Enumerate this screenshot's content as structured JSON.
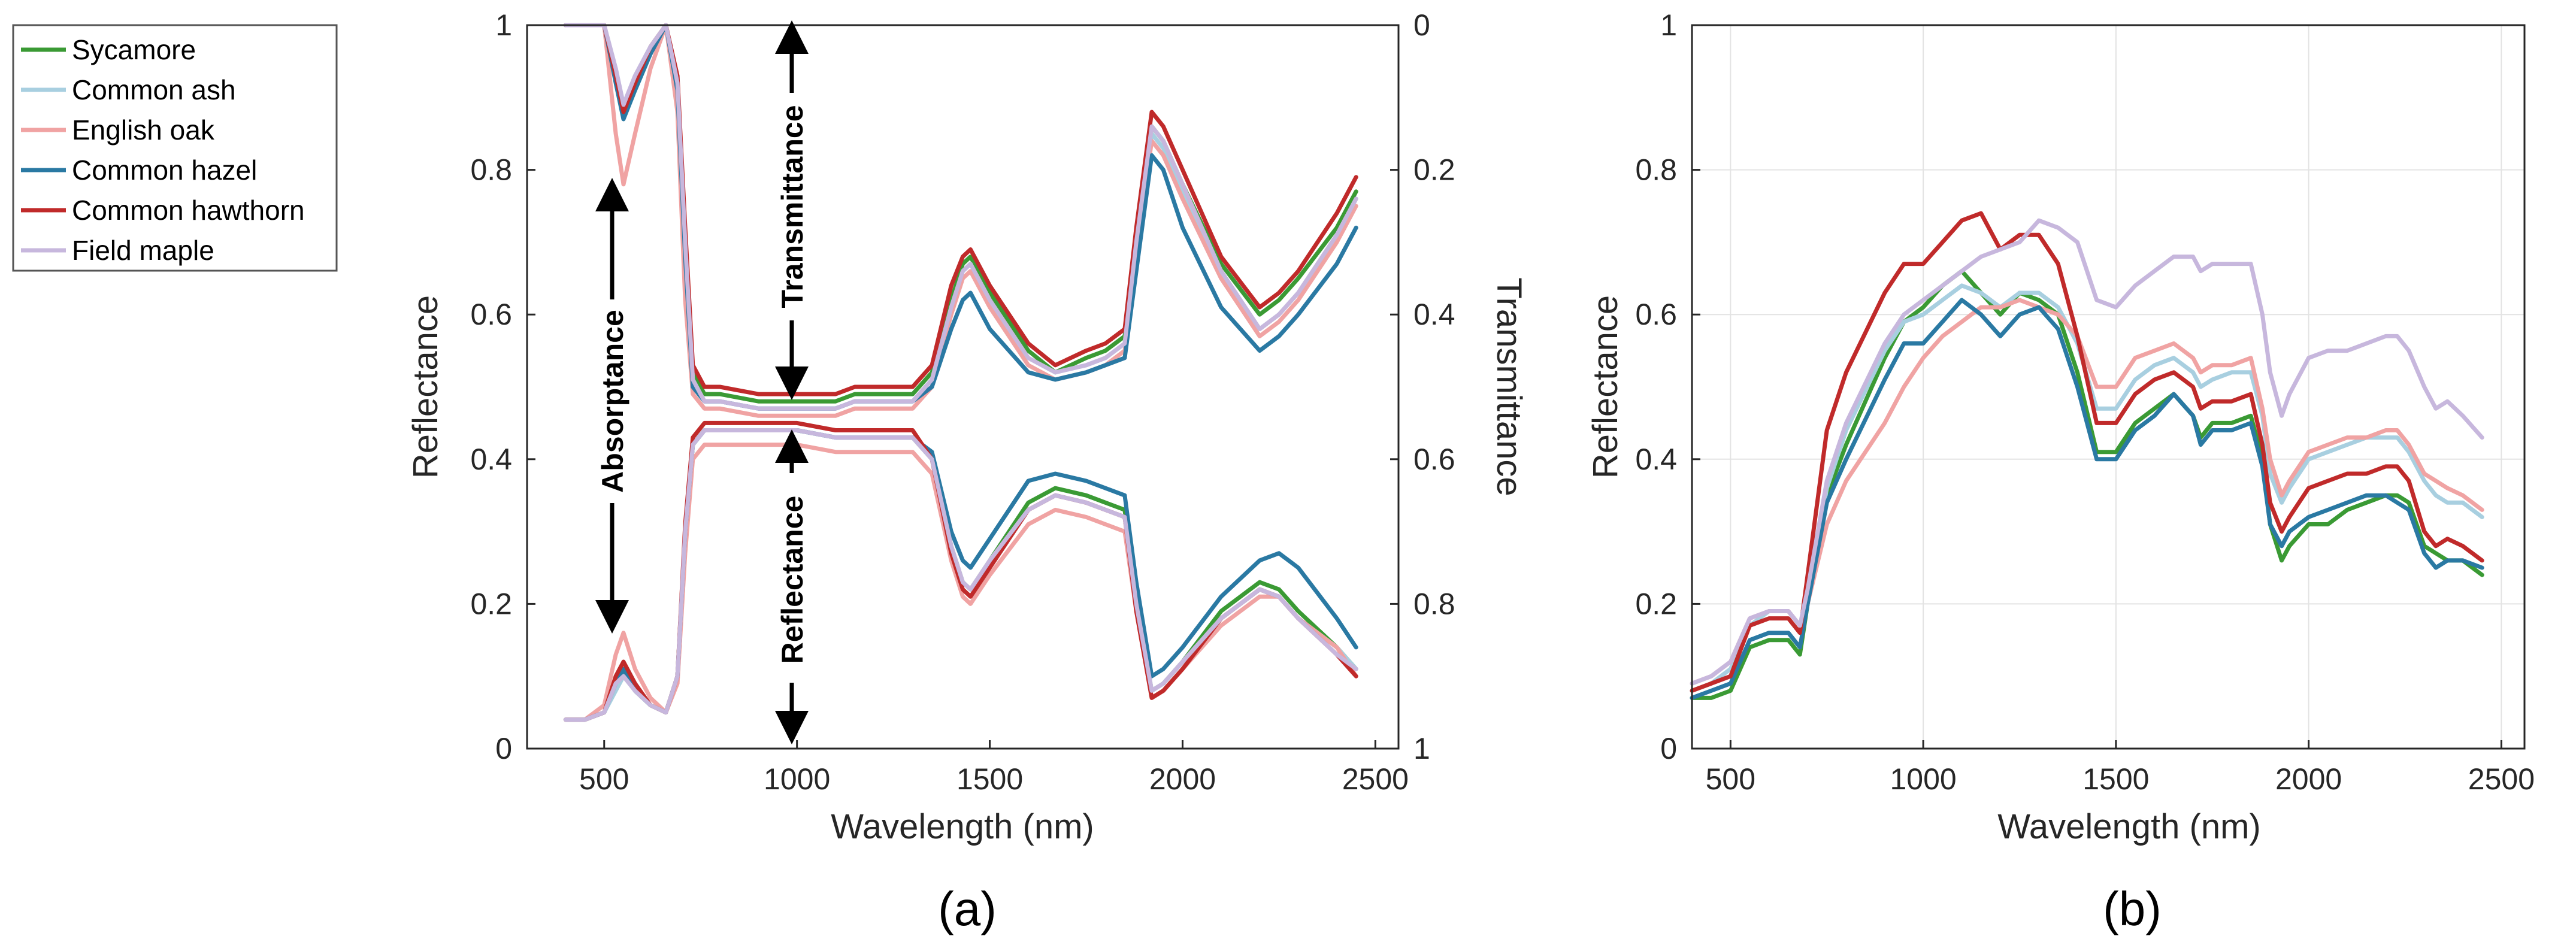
{
  "legend": {
    "entries": [
      {
        "label": "Sycamore",
        "color": "#3a9a34"
      },
      {
        "label": "Common ash",
        "color": "#a8cfe0"
      },
      {
        "label": "English oak",
        "color": "#f0a3a3"
      },
      {
        "label": "Common hazel",
        "color": "#2a79a3"
      },
      {
        "label": "Common hawthorn",
        "color": "#c02a2a"
      },
      {
        "label": "Field maple",
        "color": "#c7b7dd"
      }
    ]
  },
  "chart_data": [
    {
      "type": "line",
      "panel_label": "(a)",
      "xlabel": "Wavelength (nm)",
      "ylabel": "Reflectance",
      "ylabel_right": "Transmittance",
      "xlim": [
        300,
        2560
      ],
      "ylim": [
        0,
        1
      ],
      "xticks": [
        "500",
        "1000",
        "1500",
        "2000",
        "2500"
      ],
      "yticks": [
        "0",
        "0.2",
        "0.4",
        "0.6",
        "0.8",
        "1"
      ],
      "yticks_right": [
        "1",
        "0.8",
        "0.6",
        "0.4",
        "0.2",
        "0"
      ],
      "grid": false,
      "annotations": [
        "Absorptance",
        "Transmittance",
        "Reflectance"
      ],
      "x": [
        400,
        450,
        500,
        530,
        550,
        580,
        620,
        660,
        690,
        710,
        730,
        760,
        800,
        900,
        1000,
        1100,
        1150,
        1200,
        1300,
        1350,
        1400,
        1430,
        1450,
        1500,
        1600,
        1670,
        1750,
        1800,
        1850,
        1880,
        1920,
        1950,
        2000,
        2100,
        2200,
        2250,
        2300,
        2400,
        2450
      ],
      "series": [
        {
          "name": "Sycamore",
          "kind": "reflectance",
          "values": [
            0.04,
            0.04,
            0.05,
            0.09,
            0.11,
            0.08,
            0.06,
            0.05,
            0.1,
            0.3,
            0.42,
            0.44,
            0.44,
            0.44,
            0.44,
            0.43,
            0.43,
            0.43,
            0.43,
            0.4,
            0.28,
            0.23,
            0.22,
            0.26,
            0.34,
            0.36,
            0.35,
            0.34,
            0.33,
            0.2,
            0.08,
            0.09,
            0.12,
            0.19,
            0.23,
            0.22,
            0.19,
            0.14,
            0.11
          ]
        },
        {
          "name": "Common ash",
          "kind": "reflectance",
          "values": [
            0.04,
            0.04,
            0.05,
            0.08,
            0.1,
            0.08,
            0.06,
            0.05,
            0.1,
            0.3,
            0.42,
            0.44,
            0.44,
            0.44,
            0.44,
            0.43,
            0.43,
            0.43,
            0.43,
            0.4,
            0.28,
            0.23,
            0.22,
            0.26,
            0.33,
            0.35,
            0.34,
            0.33,
            0.32,
            0.2,
            0.08,
            0.09,
            0.12,
            0.18,
            0.22,
            0.21,
            0.18,
            0.14,
            0.11
          ]
        },
        {
          "name": "English oak",
          "kind": "reflectance",
          "values": [
            0.04,
            0.04,
            0.06,
            0.13,
            0.16,
            0.11,
            0.07,
            0.05,
            0.09,
            0.27,
            0.4,
            0.42,
            0.42,
            0.42,
            0.42,
            0.41,
            0.41,
            0.41,
            0.41,
            0.38,
            0.26,
            0.21,
            0.2,
            0.24,
            0.31,
            0.33,
            0.32,
            0.31,
            0.3,
            0.19,
            0.07,
            0.08,
            0.11,
            0.17,
            0.21,
            0.21,
            0.18,
            0.14,
            0.1
          ]
        },
        {
          "name": "Common hazel",
          "kind": "reflectance",
          "values": [
            0.04,
            0.04,
            0.05,
            0.09,
            0.11,
            0.08,
            0.06,
            0.05,
            0.1,
            0.3,
            0.42,
            0.44,
            0.44,
            0.44,
            0.44,
            0.43,
            0.43,
            0.43,
            0.43,
            0.41,
            0.3,
            0.26,
            0.25,
            0.29,
            0.37,
            0.38,
            0.37,
            0.36,
            0.35,
            0.23,
            0.1,
            0.11,
            0.14,
            0.21,
            0.26,
            0.27,
            0.25,
            0.18,
            0.14
          ]
        },
        {
          "name": "Common hawthorn",
          "kind": "reflectance",
          "values": [
            0.04,
            0.04,
            0.05,
            0.1,
            0.12,
            0.09,
            0.06,
            0.05,
            0.1,
            0.31,
            0.43,
            0.45,
            0.45,
            0.45,
            0.45,
            0.44,
            0.44,
            0.44,
            0.44,
            0.4,
            0.27,
            0.22,
            0.21,
            0.25,
            0.33,
            0.35,
            0.34,
            0.33,
            0.32,
            0.19,
            0.07,
            0.08,
            0.11,
            0.18,
            0.22,
            0.21,
            0.18,
            0.13,
            0.1
          ]
        },
        {
          "name": "Field maple",
          "kind": "reflectance",
          "values": [
            0.04,
            0.04,
            0.05,
            0.09,
            0.1,
            0.08,
            0.06,
            0.05,
            0.1,
            0.3,
            0.42,
            0.44,
            0.44,
            0.44,
            0.44,
            0.43,
            0.43,
            0.43,
            0.43,
            0.4,
            0.28,
            0.23,
            0.22,
            0.26,
            0.33,
            0.35,
            0.34,
            0.33,
            0.32,
            0.2,
            0.08,
            0.09,
            0.12,
            0.18,
            0.22,
            0.21,
            0.18,
            0.13,
            0.11
          ]
        },
        {
          "name": "Sycamore",
          "kind": "transmittance_reflectance_axis",
          "values": [
            1.0,
            1.0,
            1.0,
            0.93,
            0.88,
            0.92,
            0.97,
            1.0,
            0.92,
            0.7,
            0.52,
            0.49,
            0.49,
            0.48,
            0.48,
            0.48,
            0.49,
            0.49,
            0.49,
            0.52,
            0.62,
            0.67,
            0.68,
            0.63,
            0.55,
            0.52,
            0.54,
            0.55,
            0.57,
            0.7,
            0.86,
            0.84,
            0.78,
            0.67,
            0.6,
            0.62,
            0.65,
            0.72,
            0.77
          ]
        },
        {
          "name": "Common ash",
          "kind": "transmittance_reflectance_axis",
          "values": [
            1.0,
            1.0,
            1.0,
            0.94,
            0.89,
            0.93,
            0.97,
            1.0,
            0.92,
            0.7,
            0.51,
            0.48,
            0.48,
            0.47,
            0.47,
            0.47,
            0.48,
            0.48,
            0.48,
            0.51,
            0.61,
            0.66,
            0.67,
            0.62,
            0.54,
            0.52,
            0.53,
            0.54,
            0.56,
            0.7,
            0.85,
            0.83,
            0.77,
            0.66,
            0.58,
            0.6,
            0.63,
            0.71,
            0.76
          ]
        },
        {
          "name": "English oak",
          "kind": "transmittance_reflectance_axis",
          "values": [
            1.0,
            1.0,
            1.0,
            0.85,
            0.78,
            0.85,
            0.94,
            1.0,
            0.88,
            0.62,
            0.49,
            0.47,
            0.47,
            0.46,
            0.46,
            0.46,
            0.47,
            0.47,
            0.47,
            0.5,
            0.6,
            0.65,
            0.66,
            0.61,
            0.53,
            0.51,
            0.52,
            0.53,
            0.55,
            0.69,
            0.84,
            0.82,
            0.76,
            0.65,
            0.57,
            0.59,
            0.62,
            0.7,
            0.75
          ]
        },
        {
          "name": "Common hazel",
          "kind": "transmittance_reflectance_axis",
          "values": [
            1.0,
            1.0,
            1.0,
            0.92,
            0.87,
            0.91,
            0.96,
            1.0,
            0.91,
            0.68,
            0.5,
            0.48,
            0.48,
            0.47,
            0.47,
            0.47,
            0.48,
            0.48,
            0.48,
            0.5,
            0.58,
            0.62,
            0.63,
            0.58,
            0.52,
            0.51,
            0.52,
            0.53,
            0.54,
            0.66,
            0.82,
            0.8,
            0.72,
            0.61,
            0.55,
            0.57,
            0.6,
            0.67,
            0.72
          ]
        },
        {
          "name": "Common hawthorn",
          "kind": "transmittance_reflectance_axis",
          "values": [
            1.0,
            1.0,
            1.0,
            0.93,
            0.88,
            0.92,
            0.97,
            1.0,
            0.93,
            0.72,
            0.53,
            0.5,
            0.5,
            0.49,
            0.49,
            0.49,
            0.5,
            0.5,
            0.5,
            0.53,
            0.64,
            0.68,
            0.69,
            0.64,
            0.56,
            0.53,
            0.55,
            0.56,
            0.58,
            0.72,
            0.88,
            0.86,
            0.8,
            0.68,
            0.61,
            0.63,
            0.66,
            0.74,
            0.79
          ]
        },
        {
          "name": "Field maple",
          "kind": "transmittance_reflectance_axis",
          "values": [
            1.0,
            1.0,
            1.0,
            0.94,
            0.89,
            0.93,
            0.97,
            1.0,
            0.92,
            0.7,
            0.51,
            0.48,
            0.48,
            0.47,
            0.47,
            0.47,
            0.48,
            0.48,
            0.48,
            0.51,
            0.61,
            0.66,
            0.67,
            0.62,
            0.54,
            0.52,
            0.53,
            0.54,
            0.56,
            0.7,
            0.86,
            0.84,
            0.78,
            0.66,
            0.58,
            0.6,
            0.63,
            0.71,
            0.76
          ]
        }
      ]
    },
    {
      "type": "line",
      "panel_label": "(b)",
      "xlabel": "Wavelength (nm)",
      "ylabel": "Reflectance",
      "xlim": [
        400,
        2560
      ],
      "ylim": [
        0,
        1
      ],
      "xticks": [
        "500",
        "1000",
        "1500",
        "2000",
        "2500"
      ],
      "yticks": [
        "0",
        "0.2",
        "0.4",
        "0.6",
        "0.8",
        "1"
      ],
      "grid": true,
      "x": [
        400,
        450,
        500,
        550,
        600,
        650,
        680,
        700,
        750,
        800,
        900,
        950,
        1000,
        1050,
        1100,
        1150,
        1200,
        1250,
        1300,
        1350,
        1400,
        1450,
        1500,
        1550,
        1600,
        1650,
        1700,
        1720,
        1750,
        1800,
        1850,
        1880,
        1900,
        1930,
        1950,
        2000,
        2050,
        2100,
        2150,
        2200,
        2230,
        2260,
        2300,
        2330,
        2360,
        2400,
        2450
      ],
      "series": [
        {
          "name": "Sycamore",
          "values": [
            0.07,
            0.07,
            0.08,
            0.14,
            0.15,
            0.15,
            0.13,
            0.2,
            0.35,
            0.42,
            0.54,
            0.59,
            0.61,
            0.64,
            0.66,
            0.63,
            0.6,
            0.63,
            0.62,
            0.6,
            0.52,
            0.41,
            0.41,
            0.45,
            0.47,
            0.49,
            0.46,
            0.43,
            0.45,
            0.45,
            0.46,
            0.4,
            0.31,
            0.26,
            0.28,
            0.31,
            0.31,
            0.33,
            0.34,
            0.35,
            0.35,
            0.34,
            0.28,
            0.27,
            0.26,
            0.26,
            0.24
          ]
        },
        {
          "name": "Common ash",
          "values": [
            0.08,
            0.09,
            0.11,
            0.17,
            0.19,
            0.19,
            0.17,
            0.21,
            0.36,
            0.44,
            0.55,
            0.59,
            0.6,
            0.62,
            0.64,
            0.63,
            0.61,
            0.63,
            0.63,
            0.61,
            0.56,
            0.47,
            0.47,
            0.51,
            0.53,
            0.54,
            0.52,
            0.5,
            0.51,
            0.52,
            0.52,
            0.46,
            0.38,
            0.34,
            0.36,
            0.4,
            0.41,
            0.42,
            0.43,
            0.43,
            0.43,
            0.41,
            0.37,
            0.35,
            0.34,
            0.34,
            0.32
          ]
        },
        {
          "name": "English oak",
          "values": [
            0.09,
            0.1,
            0.12,
            0.18,
            0.19,
            0.19,
            0.17,
            0.2,
            0.31,
            0.37,
            0.45,
            0.5,
            0.54,
            0.57,
            0.59,
            0.61,
            0.61,
            0.62,
            0.61,
            0.6,
            0.57,
            0.5,
            0.5,
            0.54,
            0.55,
            0.56,
            0.54,
            0.52,
            0.53,
            0.53,
            0.54,
            0.47,
            0.4,
            0.35,
            0.37,
            0.41,
            0.42,
            0.43,
            0.43,
            0.44,
            0.44,
            0.42,
            0.38,
            0.37,
            0.36,
            0.35,
            0.33
          ]
        },
        {
          "name": "Common hazel",
          "values": [
            0.07,
            0.08,
            0.09,
            0.15,
            0.16,
            0.16,
            0.14,
            0.2,
            0.34,
            0.4,
            0.51,
            0.56,
            0.56,
            0.59,
            0.62,
            0.6,
            0.57,
            0.6,
            0.61,
            0.58,
            0.5,
            0.4,
            0.4,
            0.44,
            0.46,
            0.49,
            0.46,
            0.42,
            0.44,
            0.44,
            0.45,
            0.39,
            0.31,
            0.28,
            0.3,
            0.32,
            0.33,
            0.34,
            0.35,
            0.35,
            0.34,
            0.33,
            0.27,
            0.25,
            0.26,
            0.26,
            0.25
          ]
        },
        {
          "name": "Common hawthorn",
          "values": [
            0.08,
            0.09,
            0.1,
            0.17,
            0.18,
            0.18,
            0.16,
            0.24,
            0.44,
            0.52,
            0.63,
            0.67,
            0.67,
            0.7,
            0.73,
            0.74,
            0.69,
            0.71,
            0.71,
            0.67,
            0.57,
            0.45,
            0.45,
            0.49,
            0.51,
            0.52,
            0.5,
            0.47,
            0.48,
            0.48,
            0.49,
            0.42,
            0.34,
            0.3,
            0.32,
            0.36,
            0.37,
            0.38,
            0.38,
            0.39,
            0.39,
            0.37,
            0.3,
            0.28,
            0.29,
            0.28,
            0.26
          ]
        },
        {
          "name": "Field maple",
          "values": [
            0.09,
            0.1,
            0.12,
            0.18,
            0.19,
            0.19,
            0.17,
            0.22,
            0.37,
            0.45,
            0.56,
            0.6,
            0.62,
            0.64,
            0.66,
            0.68,
            0.69,
            0.7,
            0.73,
            0.72,
            0.7,
            0.62,
            0.61,
            0.64,
            0.66,
            0.68,
            0.68,
            0.66,
            0.67,
            0.67,
            0.67,
            0.6,
            0.52,
            0.46,
            0.49,
            0.54,
            0.55,
            0.55,
            0.56,
            0.57,
            0.57,
            0.55,
            0.5,
            0.47,
            0.48,
            0.46,
            0.43
          ]
        }
      ]
    }
  ]
}
